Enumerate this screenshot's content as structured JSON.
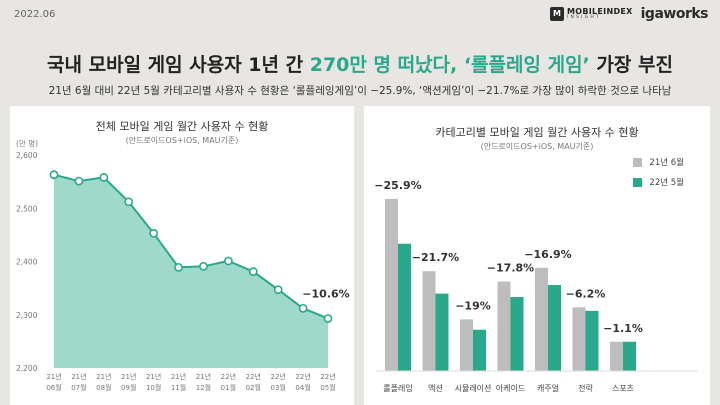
{
  "date": "2022.06",
  "brand": {
    "mobileindex": "MOBILEINDEX",
    "insight": "INSIGHT",
    "igaworks": "igaworks",
    "colors": {
      "mi": "#2b2b2b"
    }
  },
  "headline": {
    "part1": "국내 모바일 게임 사용자 1년 간 ",
    "highlight": "270만 명 떠났다, ‘롤플레잉 게임’",
    "part2": " 가장 부진"
  },
  "subtitle": "21년 6월 대비 22년 5월 카테고리별 사용자 수 현황은 ‘롤플레잉게임’이 −25.9%, ‘액션게임’이 −21.7%로 가장 많이 하락한 것으로 나타남",
  "colors": {
    "accent": "#2aa88c",
    "bg": "#e7e6e3",
    "area_fill": "#9fd9c9",
    "area_line": "#2aa88c",
    "bar_prev": "#bdbdbd",
    "bar_curr": "#2aa88c"
  },
  "left_panel": {
    "title": "전체 모바일 게임 월간 사용자 수 현황",
    "note": "(안드로이드OS+iOS, MAU기준)"
  },
  "right_panel": {
    "title": "카테고리별 모바일 게임 월간 사용자 수 현황",
    "note": "(안드로이드OS+iOS, MAU기준)"
  },
  "chart_data": [
    {
      "type": "area",
      "title": "전체 모바일 게임 월간 사용자 수 현황",
      "ylabel": "(만 명)",
      "ylim": [
        2200,
        2600
      ],
      "yticks": [
        "2,200",
        "2,300",
        "2,400",
        "2,500",
        "2,600"
      ],
      "x": [
        [
          "21년",
          "06월"
        ],
        [
          "21년",
          "07월"
        ],
        [
          "21년",
          "08월"
        ],
        [
          "21년",
          "09월"
        ],
        [
          "21년",
          "10월"
        ],
        [
          "21년",
          "11월"
        ],
        [
          "21년",
          "12월"
        ],
        [
          "22년",
          "01월"
        ],
        [
          "22년",
          "02월"
        ],
        [
          "22년",
          "03월"
        ],
        [
          "22년",
          "04월"
        ],
        [
          "22년",
          "05월"
        ]
      ],
      "values": [
        2563,
        2551,
        2558,
        2512,
        2453,
        2389,
        2391,
        2401,
        2381,
        2347,
        2312,
        2293
      ],
      "annotation": "−10.6%",
      "grid": false
    },
    {
      "type": "bar",
      "title": "카테고리별 모바일 게임 월간 사용자 수 현황",
      "categories": [
        "롤플레잉",
        "액션",
        "시뮬레이션",
        "아케이드",
        "캐주얼",
        "전략",
        "스포츠"
      ],
      "series": [
        {
          "name": "21년 6월",
          "values": [
            100,
            58,
            30,
            52,
            60,
            37,
            17
          ]
        },
        {
          "name": "22년 5월",
          "values": [
            74,
            45,
            24,
            43,
            50,
            35,
            17
          ]
        }
      ],
      "data_labels": [
        "−25.9%",
        "−21.7%",
        "−19%",
        "−17.8%",
        "−16.9%",
        "−6.2%",
        "−1.1%"
      ],
      "legend": "top-right",
      "grid": false
    }
  ]
}
